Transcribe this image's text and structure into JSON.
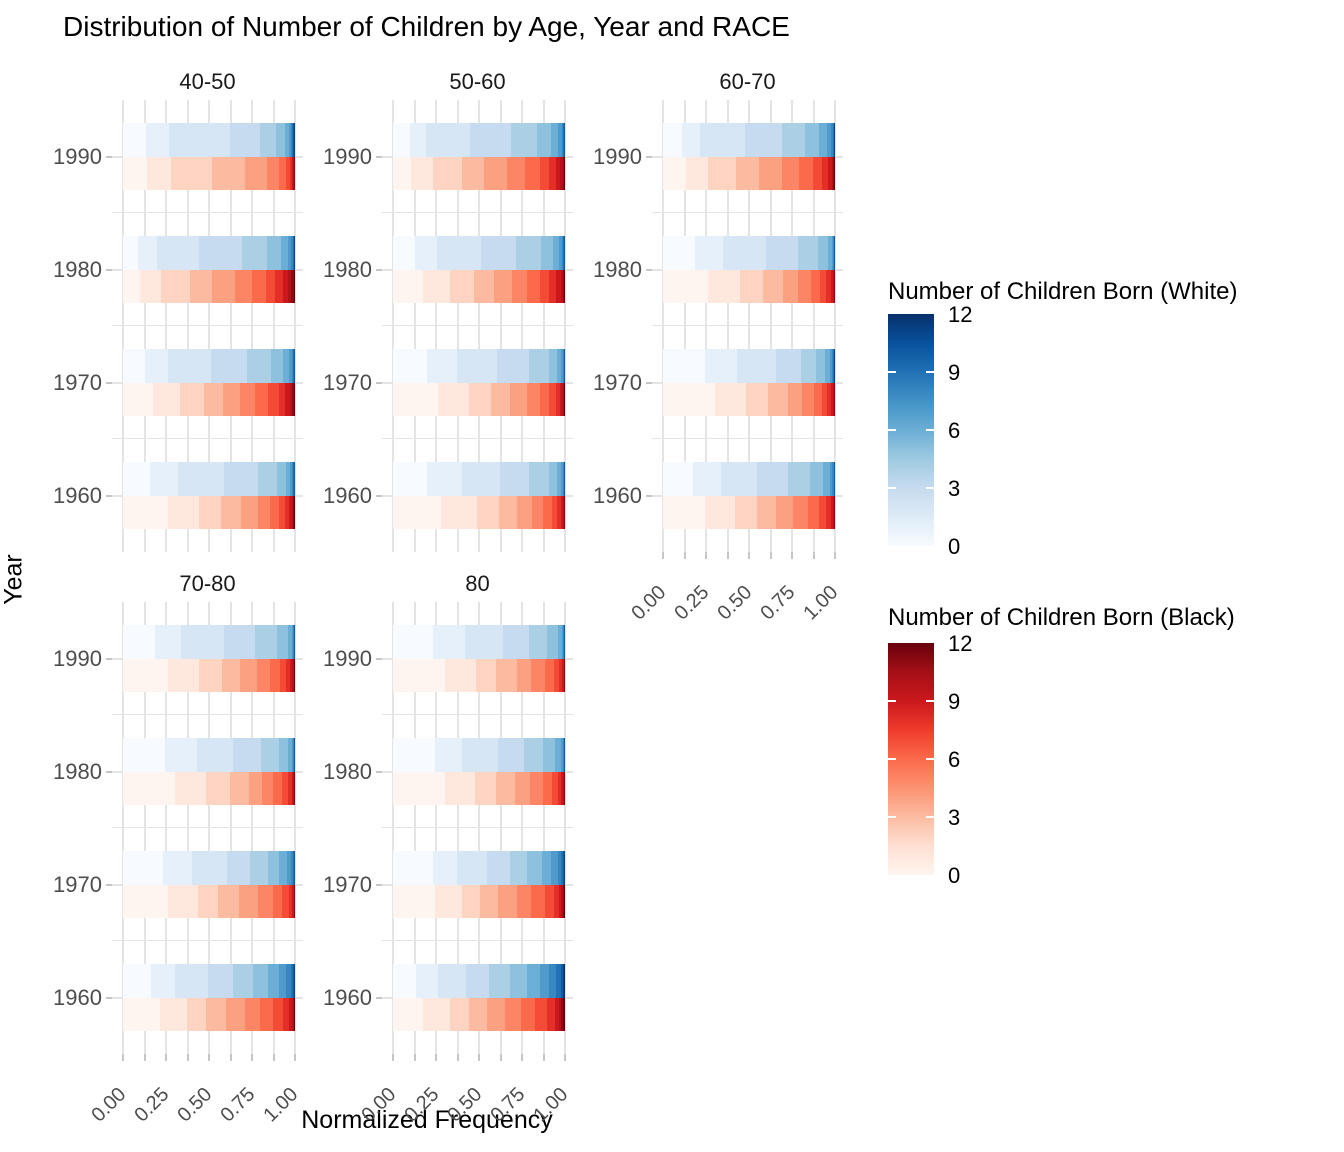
{
  "title": "Distribution of Number of Children by Age, Year and RACE",
  "axes": {
    "x_title": "Normalized Frequency",
    "y_title": "Year",
    "x_tick_labels": [
      "0.00",
      "0.25",
      "0.50",
      "0.75",
      "1.00"
    ],
    "y_tick_labels": [
      "1990",
      "1980",
      "1970",
      "1960"
    ]
  },
  "legends": [
    {
      "title": "Number of Children Born (White)",
      "tick_labels": [
        "12",
        "9",
        "6",
        "3",
        "0"
      ],
      "domain": [
        0,
        12
      ],
      "ramp": [
        "#F7FBFF",
        "#DEEBF7",
        "#C6DBEF",
        "#9ECAE1",
        "#6BAED6",
        "#4292C6",
        "#2171B5",
        "#08519C",
        "#08306B"
      ]
    },
    {
      "title": "Number of Children Born (Black)",
      "tick_labels": [
        "12",
        "9",
        "6",
        "3",
        "0"
      ],
      "domain": [
        0,
        12
      ],
      "ramp": [
        "#FFF5F0",
        "#FEE0D2",
        "#FCBBA1",
        "#FC9272",
        "#FB6A4A",
        "#EF3B2C",
        "#CB181D",
        "#A50F15",
        "#67000D"
      ]
    }
  ],
  "chart_data": {
    "type": "bar",
    "subtype": "horizontal-normalized-stacked",
    "title": "Distribution of Number of Children by Age, Year and RACE",
    "xlabel": "Normalized Frequency",
    "ylabel": "Year",
    "xlim": [
      0,
      1
    ],
    "x_breaks": [
      0,
      0.25,
      0.5,
      0.75,
      1.0
    ],
    "grid": true,
    "children_values": [
      0,
      1,
      2,
      3,
      4,
      5,
      6,
      7,
      8,
      9,
      10,
      11,
      12
    ],
    "series_note": "Each year has two bars: top=White (blue ramp), bottom=Black (red ramp). Values are proportions of number-of-children counts 0..12, normalized to 1.",
    "facets": [
      {
        "label": "40-50",
        "years": [
          {
            "year": "1990",
            "white": [
              0.135,
              0.135,
              0.35,
              0.175,
              0.095,
              0.05,
              0.025,
              0.012,
              0.008,
              0.006,
              0.004,
              0.003,
              0.002
            ],
            "black": [
              0.14,
              0.14,
              0.24,
              0.19,
              0.13,
              0.07,
              0.04,
              0.02,
              0.012,
              0.008,
              0.005,
              0.003,
              0.002
            ]
          },
          {
            "year": "1980",
            "white": [
              0.09,
              0.105,
              0.245,
              0.25,
              0.15,
              0.08,
              0.04,
              0.018,
              0.01,
              0.006,
              0.003,
              0.002,
              0.001
            ],
            "black": [
              0.1,
              0.12,
              0.17,
              0.13,
              0.13,
              0.1,
              0.08,
              0.055,
              0.045,
              0.03,
              0.02,
              0.012,
              0.008
            ]
          },
          {
            "year": "1970",
            "white": [
              0.13,
              0.13,
              0.25,
              0.21,
              0.14,
              0.07,
              0.035,
              0.017,
              0.008,
              0.005,
              0.003,
              0.001,
              0.001
            ],
            "black": [
              0.175,
              0.155,
              0.14,
              0.11,
              0.1,
              0.09,
              0.075,
              0.06,
              0.04,
              0.025,
              0.015,
              0.01,
              0.005
            ]
          },
          {
            "year": "1960",
            "white": [
              0.155,
              0.165,
              0.27,
              0.195,
              0.11,
              0.05,
              0.025,
              0.012,
              0.008,
              0.005,
              0.003,
              0.001,
              0.001
            ],
            "black": [
              0.26,
              0.18,
              0.13,
              0.115,
              0.1,
              0.07,
              0.055,
              0.035,
              0.022,
              0.013,
              0.009,
              0.006,
              0.005
            ]
          }
        ]
      },
      {
        "label": "50-60",
        "years": [
          {
            "year": "1990",
            "white": [
              0.1,
              0.09,
              0.26,
              0.235,
              0.155,
              0.08,
              0.04,
              0.02,
              0.01,
              0.005,
              0.003,
              0.001,
              0.001
            ],
            "black": [
              0.105,
              0.13,
              0.165,
              0.13,
              0.13,
              0.105,
              0.09,
              0.055,
              0.04,
              0.022,
              0.014,
              0.009,
              0.005
            ]
          },
          {
            "year": "1980",
            "white": [
              0.125,
              0.13,
              0.255,
              0.205,
              0.145,
              0.07,
              0.035,
              0.017,
              0.009,
              0.005,
              0.002,
              0.001,
              0.001
            ],
            "black": [
              0.175,
              0.155,
              0.14,
              0.115,
              0.105,
              0.09,
              0.075,
              0.055,
              0.04,
              0.025,
              0.013,
              0.008,
              0.004
            ]
          },
          {
            "year": "1970",
            "white": [
              0.195,
              0.175,
              0.235,
              0.185,
              0.115,
              0.05,
              0.022,
              0.011,
              0.005,
              0.003,
              0.002,
              0.001,
              0.001
            ],
            "black": [
              0.26,
              0.18,
              0.13,
              0.11,
              0.1,
              0.075,
              0.055,
              0.04,
              0.022,
              0.012,
              0.008,
              0.005,
              0.003
            ]
          },
          {
            "year": "1960",
            "white": [
              0.195,
              0.205,
              0.225,
              0.165,
              0.115,
              0.05,
              0.022,
              0.01,
              0.006,
              0.003,
              0.002,
              0.001,
              0.001
            ],
            "black": [
              0.28,
              0.21,
              0.125,
              0.105,
              0.09,
              0.065,
              0.05,
              0.03,
              0.02,
              0.012,
              0.007,
              0.004,
              0.002
            ]
          }
        ]
      },
      {
        "label": "60-70",
        "years": [
          {
            "year": "1990",
            "white": [
              0.11,
              0.105,
              0.26,
              0.215,
              0.135,
              0.085,
              0.045,
              0.02,
              0.011,
              0.006,
              0.004,
              0.002,
              0.002
            ],
            "black": [
              0.135,
              0.125,
              0.165,
              0.135,
              0.13,
              0.1,
              0.085,
              0.05,
              0.035,
              0.02,
              0.01,
              0.006,
              0.004
            ]
          },
          {
            "year": "1980",
            "white": [
              0.185,
              0.165,
              0.25,
              0.185,
              0.115,
              0.06,
              0.02,
              0.01,
              0.005,
              0.002,
              0.001,
              0.001,
              0.001
            ],
            "black": [
              0.26,
              0.185,
              0.135,
              0.115,
              0.09,
              0.075,
              0.055,
              0.035,
              0.025,
              0.012,
              0.007,
              0.004,
              0.002
            ]
          },
          {
            "year": "1970",
            "white": [
              0.245,
              0.185,
              0.225,
              0.145,
              0.09,
              0.055,
              0.025,
              0.012,
              0.008,
              0.004,
              0.003,
              0.002,
              0.001
            ],
            "black": [
              0.3,
              0.185,
              0.125,
              0.115,
              0.085,
              0.07,
              0.045,
              0.03,
              0.02,
              0.012,
              0.007,
              0.004,
              0.002
            ]
          },
          {
            "year": "1960",
            "white": [
              0.175,
              0.165,
              0.205,
              0.185,
              0.125,
              0.075,
              0.04,
              0.015,
              0.008,
              0.004,
              0.002,
              0.001,
              0.001
            ],
            "black": [
              0.245,
              0.175,
              0.125,
              0.115,
              0.095,
              0.09,
              0.06,
              0.045,
              0.025,
              0.013,
              0.007,
              0.003,
              0.002
            ]
          }
        ]
      },
      {
        "label": "70-80",
        "years": [
          {
            "year": "1990",
            "white": [
              0.185,
              0.155,
              0.25,
              0.175,
              0.13,
              0.065,
              0.022,
              0.008,
              0.004,
              0.003,
              0.001,
              0.001,
              0.001
            ],
            "black": [
              0.26,
              0.18,
              0.135,
              0.105,
              0.1,
              0.075,
              0.06,
              0.035,
              0.022,
              0.012,
              0.008,
              0.005,
              0.003
            ]
          },
          {
            "year": "1980",
            "white": [
              0.245,
              0.185,
              0.21,
              0.165,
              0.1,
              0.055,
              0.02,
              0.01,
              0.005,
              0.002,
              0.001,
              0.001,
              0.001
            ],
            "black": [
              0.3,
              0.185,
              0.135,
              0.11,
              0.08,
              0.065,
              0.05,
              0.035,
              0.02,
              0.01,
              0.005,
              0.003,
              0.002
            ]
          },
          {
            "year": "1970",
            "white": [
              0.235,
              0.165,
              0.205,
              0.135,
              0.105,
              0.065,
              0.045,
              0.022,
              0.012,
              0.006,
              0.003,
              0.001,
              0.001
            ],
            "black": [
              0.26,
              0.175,
              0.115,
              0.125,
              0.11,
              0.085,
              0.055,
              0.04,
              0.02,
              0.008,
              0.004,
              0.002,
              0.001
            ]
          },
          {
            "year": "1960",
            "white": [
              0.165,
              0.135,
              0.195,
              0.145,
              0.115,
              0.09,
              0.065,
              0.04,
              0.025,
              0.013,
              0.007,
              0.003,
              0.002
            ],
            "black": [
              0.215,
              0.155,
              0.115,
              0.115,
              0.11,
              0.085,
              0.08,
              0.055,
              0.035,
              0.018,
              0.009,
              0.005,
              0.003
            ]
          }
        ]
      },
      {
        "label": "80",
        "years": [
          {
            "year": "1990",
            "white": [
              0.235,
              0.185,
              0.22,
              0.15,
              0.105,
              0.065,
              0.022,
              0.008,
              0.004,
              0.002,
              0.002,
              0.001,
              0.001
            ],
            "black": [
              0.3,
              0.185,
              0.115,
              0.12,
              0.085,
              0.08,
              0.05,
              0.03,
              0.02,
              0.008,
              0.004,
              0.002,
              0.001
            ]
          },
          {
            "year": "1980",
            "white": [
              0.245,
              0.155,
              0.21,
              0.155,
              0.11,
              0.07,
              0.035,
              0.012,
              0.005,
              0.002,
              0.001,
              0.001,
              0.001
            ],
            "black": [
              0.3,
              0.175,
              0.125,
              0.11,
              0.09,
              0.075,
              0.05,
              0.035,
              0.02,
              0.01,
              0.006,
              0.003,
              0.002
            ]
          },
          {
            "year": "1970",
            "white": [
              0.235,
              0.135,
              0.175,
              0.135,
              0.1,
              0.085,
              0.055,
              0.04,
              0.02,
              0.01,
              0.006,
              0.003,
              0.002
            ],
            "black": [
              0.245,
              0.155,
              0.105,
              0.105,
              0.11,
              0.085,
              0.08,
              0.05,
              0.03,
              0.015,
              0.01,
              0.006,
              0.004
            ]
          },
          {
            "year": "1960",
            "white": [
              0.135,
              0.125,
              0.165,
              0.135,
              0.12,
              0.1,
              0.075,
              0.055,
              0.04,
              0.025,
              0.015,
              0.007,
              0.003
            ],
            "black": [
              0.175,
              0.155,
              0.11,
              0.105,
              0.105,
              0.095,
              0.08,
              0.07,
              0.045,
              0.025,
              0.015,
              0.008,
              0.012
            ]
          }
        ]
      }
    ]
  }
}
